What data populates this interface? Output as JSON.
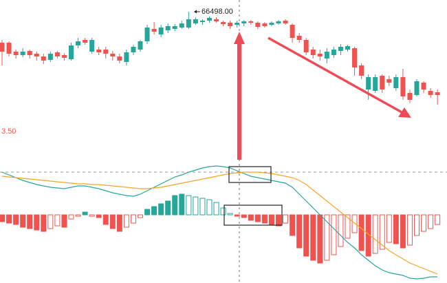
{
  "chart_data": [
    {
      "type": "candlestick",
      "annotation": "66498.00",
      "side_label": "3.50",
      "up_color": "#26a69a",
      "down_color": "#ef5350",
      "ylim": [
        64670,
        66670
      ],
      "open": [
        66050,
        66050,
        65920,
        65870,
        65930,
        65890,
        65850,
        65800,
        65910,
        65870,
        65810,
        66010,
        66090,
        65920,
        65950,
        65950,
        65890,
        65850,
        65770,
        65910,
        65950,
        66070,
        66250,
        66170,
        66230,
        66250,
        66270,
        66270,
        66330,
        66350,
        66370,
        66390,
        66350,
        66340,
        66310,
        66330,
        66360,
        66340,
        66330,
        66310,
        66330,
        66370,
        66310,
        66150,
        66090,
        65950,
        65890,
        65820,
        65870,
        65930,
        65950,
        65970,
        65720,
        65370,
        65350,
        65570,
        65520,
        65390,
        65550,
        65320,
        65290,
        65470,
        65350,
        65330
      ],
      "close": [
        65920,
        65890,
        65870,
        65920,
        65870,
        65850,
        65790,
        65890,
        65850,
        65830,
        66010,
        66070,
        66050,
        66090,
        65910,
        65890,
        65850,
        65790,
        65910,
        65990,
        66070,
        66270,
        66210,
        66270,
        66290,
        66290,
        66330,
        66390,
        66390,
        66370,
        66410,
        66360,
        66320,
        66290,
        66340,
        66360,
        66340,
        66280,
        66290,
        66340,
        66360,
        66330,
        66120,
        66090,
        65910,
        65870,
        65850,
        65920,
        65950,
        65990,
        66000,
        65690,
        65570,
        65550,
        65550,
        65370,
        65470,
        65550,
        65270,
        65220,
        65490,
        65370,
        65290,
        65290
      ],
      "high": [
        66090,
        66070,
        65950,
        65970,
        65950,
        65920,
        65890,
        65920,
        65930,
        65900,
        66050,
        66120,
        66120,
        66120,
        65990,
        65990,
        65930,
        65890,
        65950,
        66020,
        66090,
        66310,
        66350,
        66310,
        66330,
        66320,
        66370,
        66498,
        66420,
        66390,
        66430,
        66420,
        66370,
        66370,
        66370,
        66380,
        66380,
        66360,
        66350,
        66360,
        66380,
        66390,
        66330,
        66190,
        66120,
        65990,
        65950,
        65970,
        65990,
        66030,
        66020,
        65990,
        65750,
        65590,
        65590,
        65590,
        65570,
        65590,
        65670,
        65370,
        65520,
        65490,
        65390,
        65370
      ],
      "low": [
        65720,
        65850,
        65820,
        65840,
        65820,
        65790,
        65740,
        65770,
        65820,
        65790,
        65790,
        65970,
        66020,
        65890,
        65870,
        65820,
        65790,
        65750,
        65720,
        65870,
        65920,
        66030,
        66170,
        66130,
        66190,
        66220,
        66250,
        66250,
        66310,
        66310,
        66340,
        66340,
        66290,
        66250,
        66270,
        66290,
        66310,
        66250,
        66270,
        66290,
        66310,
        66310,
        66050,
        66050,
        65870,
        65820,
        65790,
        65750,
        65830,
        65870,
        65920,
        65570,
        65520,
        65220,
        65320,
        65320,
        65420,
        65350,
        65220,
        65170,
        65270,
        65320,
        65250,
        65150
      ]
    },
    {
      "type": "macd",
      "ylim": [
        -99,
        72
      ],
      "up_color": "#26a69a",
      "down_color": "#ef5350",
      "histogram": [
        -10,
        -12,
        -14,
        -18,
        -20,
        -22,
        -24,
        -20,
        -16,
        -18,
        -6,
        -2,
        4,
        -2,
        -4,
        -14,
        -20,
        -24,
        -18,
        -12,
        -4,
        8,
        12,
        16,
        20,
        28,
        30,
        28,
        26,
        24,
        22,
        18,
        10,
        2,
        -2,
        -4,
        -8,
        -10,
        -12,
        -14,
        -16,
        -12,
        -30,
        -48,
        -60,
        -66,
        -70,
        -66,
        -58,
        -46,
        -34,
        -26,
        -52,
        -60,
        -56,
        -50,
        -40,
        -42,
        -48,
        -44,
        -30,
        -24,
        -20,
        -14
      ],
      "series": [
        {
          "color": "#26a69a",
          "values": [
            62,
            58,
            54,
            50,
            47,
            44,
            42,
            40,
            39,
            38,
            40,
            42,
            42,
            40,
            38,
            35,
            32,
            30,
            28,
            27,
            30,
            35,
            40,
            45,
            50,
            55,
            58,
            62,
            65,
            68,
            70,
            71,
            70,
            68,
            64,
            60,
            56,
            54,
            52,
            50,
            48,
            46,
            40,
            30,
            20,
            10,
            0,
            -10,
            -20,
            -30,
            -40,
            -48,
            -58,
            -66,
            -74,
            -80,
            -84,
            -86,
            -88,
            -92,
            -93,
            -92,
            -90,
            -90
          ]
        },
        {
          "color": "#f5a623",
          "values": [
            56,
            55,
            54,
            53,
            52,
            51,
            50,
            49,
            48,
            47,
            46,
            45,
            45,
            44,
            44,
            43,
            42,
            41,
            40,
            39,
            38,
            38,
            39,
            40,
            42,
            44,
            46,
            48,
            50,
            52,
            54,
            56,
            58,
            60,
            61,
            62,
            62,
            62,
            61,
            60,
            58,
            56,
            54,
            50,
            44,
            36,
            28,
            20,
            12,
            4,
            -4,
            -12,
            -20,
            -28,
            -36,
            -44,
            -52,
            -58,
            -64,
            -70,
            -74,
            -78,
            -82,
            -86
          ]
        }
      ]
    }
  ]
}
